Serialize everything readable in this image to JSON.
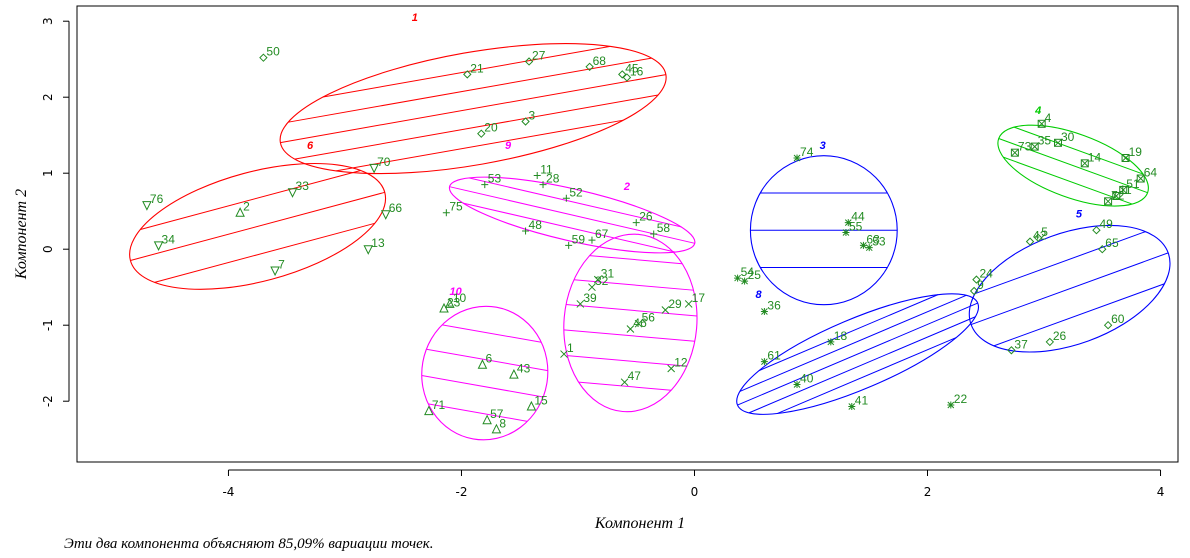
{
  "caption": "Эти два компонента объясняют 85,09% вариации точек.",
  "chart_data": {
    "type": "scatter",
    "title": "",
    "xlabel": "Компонент 1",
    "ylabel": "Компонент 2",
    "xlim": [
      -5.3,
      4.15
    ],
    "ylim": [
      -2.8,
      3.2
    ],
    "x_ticks": [
      -4,
      -2,
      0,
      2,
      4
    ],
    "y_ticks": [
      -2,
      -1,
      0,
      1,
      2,
      3
    ],
    "point_color": "#228B22",
    "clusters": [
      {
        "name": "1",
        "color": "#FF0000",
        "center": [
          -1.9,
          1.85
        ],
        "rx": 1.68,
        "ry": 0.74,
        "angle": 10,
        "label_pos": [
          -2.4,
          3.0
        ],
        "hatch_lines": 5
      },
      {
        "name": "6",
        "color": "#FF0000",
        "center": [
          -3.75,
          0.3
        ],
        "rx": 1.13,
        "ry": 0.72,
        "angle": 15,
        "label_pos": [
          -3.3,
          1.32
        ],
        "hatch_lines": 3
      },
      {
        "name": "9",
        "color": "#FF00FF",
        "center": [
          -1.05,
          0.45
        ],
        "rx": 1.08,
        "ry": 0.34,
        "angle": -13,
        "label_pos": [
          -1.6,
          1.32
        ],
        "hatch_lines": 3
      },
      {
        "name": "2",
        "color": "#FF00FF",
        "center": [
          -0.55,
          -0.97
        ],
        "rx": 0.57,
        "ry": 1.17,
        "angle": -5,
        "label_pos": [
          -0.58,
          0.78
        ],
        "hatch_lines": 6
      },
      {
        "name": "10",
        "color": "#FF00FF",
        "center": [
          -1.8,
          -1.63
        ],
        "rx": 0.54,
        "ry": 0.88,
        "angle": -10,
        "label_pos": [
          -2.05,
          -0.6
        ],
        "hatch_lines": 4
      },
      {
        "name": "3",
        "color": "#0000FF",
        "center": [
          1.11,
          0.25
        ],
        "rx": 0.63,
        "ry": 0.98,
        "angle": 0,
        "label_pos": [
          1.1,
          1.32
        ],
        "hatch_lines": 3
      },
      {
        "name": "8",
        "color": "#0000FF",
        "center": [
          1.4,
          -1.38
        ],
        "rx": 1.12,
        "ry": 0.46,
        "angle": 23,
        "label_pos": [
          0.55,
          -0.64
        ],
        "hatch_lines": 5
      },
      {
        "name": "4",
        "color": "#00CC00",
        "center": [
          3.25,
          1.1
        ],
        "rx": 0.68,
        "ry": 0.42,
        "angle": -20,
        "label_pos": [
          2.95,
          1.78
        ],
        "hatch_lines": 3
      },
      {
        "name": "5",
        "color": "#0000FF",
        "center": [
          3.22,
          -0.52
        ],
        "rx": 0.9,
        "ry": 0.73,
        "angle": 20,
        "label_pos": [
          3.3,
          0.42
        ],
        "hatch_lines": 3
      }
    ],
    "points": [
      {
        "id": "50",
        "x": -3.7,
        "y": 2.52,
        "marker": "diamond"
      },
      {
        "id": "21",
        "x": -1.95,
        "y": 2.3,
        "marker": "diamond"
      },
      {
        "id": "27",
        "x": -1.42,
        "y": 2.47,
        "marker": "diamond"
      },
      {
        "id": "68",
        "x": -0.9,
        "y": 2.4,
        "marker": "diamond"
      },
      {
        "id": "45",
        "x": -0.62,
        "y": 2.3,
        "marker": "diamond"
      },
      {
        "id": "16",
        "x": -0.58,
        "y": 2.26,
        "marker": "diamond"
      },
      {
        "id": "20",
        "x": -1.83,
        "y": 1.52,
        "marker": "diamond"
      },
      {
        "id": "3",
        "x": -1.45,
        "y": 1.68,
        "marker": "diamond"
      },
      {
        "id": "70",
        "x": -2.75,
        "y": 1.07,
        "marker": "triangle-down"
      },
      {
        "id": "76",
        "x": -4.7,
        "y": 0.58,
        "marker": "triangle-down"
      },
      {
        "id": "2",
        "x": -3.9,
        "y": 0.48,
        "marker": "triangle-up"
      },
      {
        "id": "33",
        "x": -3.45,
        "y": 0.75,
        "marker": "triangle-down"
      },
      {
        "id": "66",
        "x": -2.65,
        "y": 0.46,
        "marker": "triangle-down"
      },
      {
        "id": "34",
        "x": -4.6,
        "y": 0.05,
        "marker": "triangle-down"
      },
      {
        "id": "7",
        "x": -3.6,
        "y": -0.28,
        "marker": "triangle-down"
      },
      {
        "id": "13",
        "x": -2.8,
        "y": 0.0,
        "marker": "triangle-down"
      },
      {
        "id": "75",
        "x": -2.13,
        "y": 0.48,
        "marker": "plus"
      },
      {
        "id": "53",
        "x": -1.8,
        "y": 0.85,
        "marker": "plus"
      },
      {
        "id": "11",
        "x": -1.35,
        "y": 0.97,
        "marker": "plus"
      },
      {
        "id": "28",
        "x": -1.3,
        "y": 0.85,
        "marker": "plus"
      },
      {
        "id": "52",
        "x": -1.1,
        "y": 0.67,
        "marker": "plus"
      },
      {
        "id": "48",
        "x": -1.45,
        "y": 0.24,
        "marker": "plus"
      },
      {
        "id": "59",
        "x": -1.08,
        "y": 0.05,
        "marker": "plus"
      },
      {
        "id": "67",
        "x": -0.88,
        "y": 0.12,
        "marker": "plus"
      },
      {
        "id": "26",
        "x": -0.5,
        "y": 0.35,
        "marker": "plus"
      },
      {
        "id": "58",
        "x": -0.35,
        "y": 0.2,
        "marker": "plus"
      },
      {
        "id": "31",
        "x": -0.83,
        "y": -0.4,
        "marker": "x"
      },
      {
        "id": "32",
        "x": -0.88,
        "y": -0.5,
        "marker": "x"
      },
      {
        "id": "39",
        "x": -0.98,
        "y": -0.72,
        "marker": "x"
      },
      {
        "id": "29",
        "x": -0.25,
        "y": -0.8,
        "marker": "x"
      },
      {
        "id": "17",
        "x": -0.05,
        "y": -0.72,
        "marker": "x"
      },
      {
        "id": "56",
        "x": -0.48,
        "y": -0.98,
        "marker": "x"
      },
      {
        "id": "46",
        "x": -0.55,
        "y": -1.05,
        "marker": "x"
      },
      {
        "id": "1",
        "x": -1.12,
        "y": -1.38,
        "marker": "x"
      },
      {
        "id": "12",
        "x": -0.2,
        "y": -1.57,
        "marker": "x"
      },
      {
        "id": "47",
        "x": -0.6,
        "y": -1.75,
        "marker": "x"
      },
      {
        "id": "10",
        "x": -2.1,
        "y": -0.72,
        "marker": "triangle-up"
      },
      {
        "id": "23",
        "x": -2.15,
        "y": -0.78,
        "marker": "triangle-up"
      },
      {
        "id": "6",
        "x": -1.82,
        "y": -1.52,
        "marker": "triangle-up"
      },
      {
        "id": "43",
        "x": -1.55,
        "y": -1.65,
        "marker": "triangle-up"
      },
      {
        "id": "71",
        "x": -2.28,
        "y": -2.13,
        "marker": "triangle-up"
      },
      {
        "id": "15",
        "x": -1.4,
        "y": -2.07,
        "marker": "triangle-up"
      },
      {
        "id": "57",
        "x": -1.78,
        "y": -2.25,
        "marker": "triangle-up"
      },
      {
        "id": "8",
        "x": -1.7,
        "y": -2.37,
        "marker": "triangle-up"
      },
      {
        "id": "74",
        "x": 0.88,
        "y": 1.2,
        "marker": "asterisk"
      },
      {
        "id": "44",
        "x": 1.32,
        "y": 0.35,
        "marker": "asterisk"
      },
      {
        "id": "55",
        "x": 1.3,
        "y": 0.22,
        "marker": "asterisk"
      },
      {
        "id": "63",
        "x": 1.45,
        "y": 0.05,
        "marker": "asterisk"
      },
      {
        "id": "53",
        "x": 1.5,
        "y": 0.02,
        "marker": "asterisk"
      },
      {
        "id": "54",
        "x": 0.37,
        "y": -0.38,
        "marker": "asterisk"
      },
      {
        "id": "25",
        "x": 0.43,
        "y": -0.42,
        "marker": "asterisk"
      },
      {
        "id": "36",
        "x": 0.6,
        "y": -0.82,
        "marker": "asterisk"
      },
      {
        "id": "61",
        "x": 0.6,
        "y": -1.48,
        "marker": "asterisk"
      },
      {
        "id": "18",
        "x": 1.17,
        "y": -1.22,
        "marker": "asterisk"
      },
      {
        "id": "40",
        "x": 0.88,
        "y": -1.78,
        "marker": "asterisk"
      },
      {
        "id": "41",
        "x": 1.35,
        "y": -2.07,
        "marker": "asterisk"
      },
      {
        "id": "22",
        "x": 2.2,
        "y": -2.05,
        "marker": "asterisk"
      },
      {
        "id": "4",
        "x": 2.98,
        "y": 1.65,
        "marker": "square-x"
      },
      {
        "id": "73",
        "x": 2.75,
        "y": 1.27,
        "marker": "square-x"
      },
      {
        "id": "35",
        "x": 2.92,
        "y": 1.35,
        "marker": "square-x"
      },
      {
        "id": "30",
        "x": 3.12,
        "y": 1.4,
        "marker": "square-x"
      },
      {
        "id": "19",
        "x": 3.7,
        "y": 1.2,
        "marker": "square-x"
      },
      {
        "id": "14",
        "x": 3.35,
        "y": 1.13,
        "marker": "square-x"
      },
      {
        "id": "64",
        "x": 3.83,
        "y": 0.93,
        "marker": "square-x"
      },
      {
        "id": "51",
        "x": 3.68,
        "y": 0.78,
        "marker": "square-x"
      },
      {
        "id": "11",
        "x": 3.62,
        "y": 0.7,
        "marker": "square-x"
      },
      {
        "id": "72",
        "x": 3.55,
        "y": 0.63,
        "marker": "square-x"
      },
      {
        "id": "5",
        "x": 2.95,
        "y": 0.15,
        "marker": "diamond"
      },
      {
        "id": "42",
        "x": 2.88,
        "y": 0.1,
        "marker": "diamond"
      },
      {
        "id": "49",
        "x": 3.45,
        "y": 0.25,
        "marker": "diamond"
      },
      {
        "id": "65",
        "x": 3.5,
        "y": 0.0,
        "marker": "diamond"
      },
      {
        "id": "24",
        "x": 2.42,
        "y": -0.4,
        "marker": "diamond"
      },
      {
        "id": "9",
        "x": 2.4,
        "y": -0.55,
        "marker": "diamond"
      },
      {
        "id": "37",
        "x": 2.72,
        "y": -1.33,
        "marker": "diamond"
      },
      {
        "id": "26",
        "x": 3.05,
        "y": -1.22,
        "marker": "diamond"
      },
      {
        "id": "60",
        "x": 3.55,
        "y": -1.0,
        "marker": "diamond"
      }
    ]
  }
}
